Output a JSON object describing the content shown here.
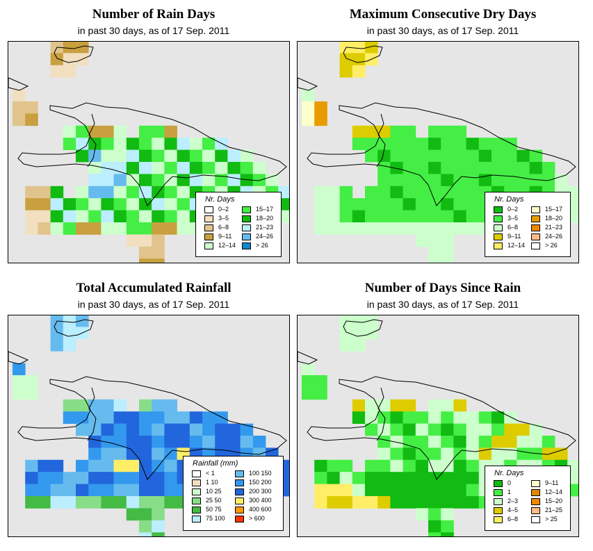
{
  "panels": [
    {
      "id": "rain-days",
      "title": "Number of Rain Days",
      "subtitle": "in past 30 days, as of  17 Sep. 2011",
      "legend": {
        "title": "Nr. Days",
        "items": [
          {
            "label": "0–2",
            "color": "#ffffff"
          },
          {
            "label": "3–5",
            "color": "#f2dfc0"
          },
          {
            "label": "6–8",
            "color": "#e0c48c"
          },
          {
            "label": "9–11",
            "color": "#c8a040"
          },
          {
            "label": "12–14",
            "color": "#ccffcc"
          },
          {
            "label": "15–17",
            "color": "#44ee44"
          },
          {
            "label": "18–20",
            "color": "#11bb11"
          },
          {
            "label": "21–23",
            "color": "#bbeeff"
          },
          {
            "label": "24–26",
            "color": "#66bbee"
          },
          {
            "label": "> 26",
            "color": "#1188cc"
          }
        ]
      }
    },
    {
      "id": "dry-days",
      "title": "Maximum Consecutive Dry Days",
      "subtitle": "in past 30 days, as of  17 Sep. 2011",
      "legend": {
        "title": "Nr. Days",
        "items": [
          {
            "label": "0–2",
            "color": "#11bb11"
          },
          {
            "label": "3–5",
            "color": "#44ee44"
          },
          {
            "label": "6–8",
            "color": "#ccffcc"
          },
          {
            "label": "9–11",
            "color": "#ddcc00"
          },
          {
            "label": "12–14",
            "color": "#ffee66"
          },
          {
            "label": "15–17",
            "color": "#ffffcc"
          },
          {
            "label": "18–20",
            "color": "#e89b00"
          },
          {
            "label": "21–23",
            "color": "#ee8800"
          },
          {
            "label": "24–26",
            "color": "#ffbb88"
          },
          {
            "label": "> 26",
            "color": "#ffffff"
          }
        ]
      }
    },
    {
      "id": "rainfall",
      "title": "Total Accumulated Rainfall",
      "subtitle": "in past 30 days, as of  17 Sep. 2011",
      "legend": {
        "title": "Rainfall (mm)",
        "items": [
          {
            "label": "< 1",
            "color": "#ffffff"
          },
          {
            "label": "1    10",
            "color": "#f2dfc0"
          },
          {
            "label": "10   25",
            "color": "#ccffcc"
          },
          {
            "label": "25   50",
            "color": "#88dd88"
          },
          {
            "label": "50   75",
            "color": "#44bb44"
          },
          {
            "label": "75  100",
            "color": "#bbeeff"
          },
          {
            "label": "100  150",
            "color": "#66bbee"
          },
          {
            "label": "150  200",
            "color": "#3399ee"
          },
          {
            "label": "200  300",
            "color": "#2266dd"
          },
          {
            "label": "300  400",
            "color": "#ffee66"
          },
          {
            "label": "400  600",
            "color": "#ff9900"
          },
          {
            "label": "> 600",
            "color": "#ff3300"
          }
        ]
      }
    },
    {
      "id": "since-rain",
      "title": "Number of Days Since Rain",
      "subtitle": "in past 30 days, as of  17 Sep. 2011",
      "legend": {
        "title": "Nr. Days",
        "items": [
          {
            "label": "0",
            "color": "#11bb11"
          },
          {
            "label": "1",
            "color": "#44ee44"
          },
          {
            "label": "2–3",
            "color": "#ccffcc"
          },
          {
            "label": "4–5",
            "color": "#ddcc00"
          },
          {
            "label": "6–8",
            "color": "#ffee66"
          },
          {
            "label": "9–11",
            "color": "#ffffcc"
          },
          {
            "label": "12–14",
            "color": "#dd8800"
          },
          {
            "label": "15–20",
            "color": "#ee8800"
          },
          {
            "label": "21–25",
            "color": "#ffbb88"
          },
          {
            "label": "> 25",
            "color": "#ffffff"
          }
        ]
      }
    }
  ],
  "colors": {
    "map_background": "#e6e6e6",
    "coastline": "#000000",
    "frame": "#000000"
  }
}
